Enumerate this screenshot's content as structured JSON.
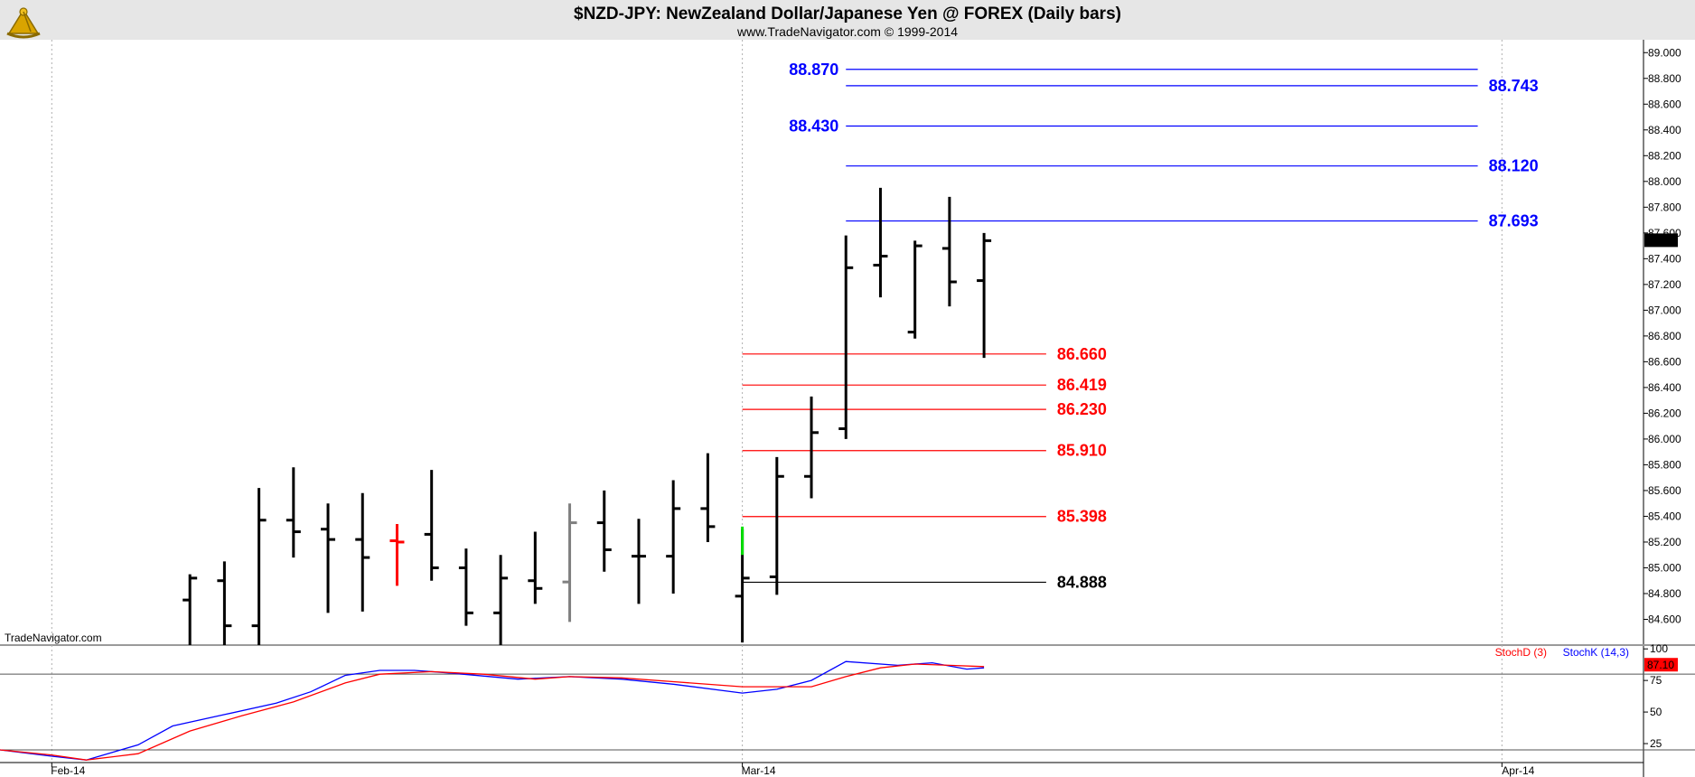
{
  "header": {
    "title": "$NZD-JPY:  NewZealand Dollar/Japanese Yen @ FOREX  (Daily bars)",
    "copyright": "www.TradeNavigator.com © 1999-2014",
    "watermark": "TradeNavigator.com",
    "logo_icon": "sextant-logo-icon"
  },
  "colors": {
    "header_bg": "#e6e6e6",
    "bar": "#000000",
    "bar_gray": "#808080",
    "bar_red": "#ff0000",
    "bar_green": "#00e000",
    "resistance": "#0000ff",
    "support": "#ff0000",
    "neutral": "#000000",
    "stoch_k": "#0000ff",
    "stoch_d": "#ff0000",
    "grid": "#b0b0b0",
    "last_price_bg": "#000000",
    "last_price_fg": "#ffffff",
    "stoch_last_bg": "#ff0000"
  },
  "chart_data": [
    {
      "type": "ohlc",
      "title": "$NZD-JPY:  NewZealand Dollar/Japanese Yen @ FOREX  (Daily bars)",
      "ylim": [
        84.4,
        89.1
      ],
      "y_ticks": [
        "84.600",
        "84.800",
        "85.000",
        "85.200",
        "85.400",
        "85.600",
        "85.800",
        "86.000",
        "86.200",
        "86.400",
        "86.600",
        "86.800",
        "87.000",
        "87.200",
        "87.400",
        "87.600",
        "87.800",
        "88.000",
        "88.200",
        "88.400",
        "88.600",
        "88.800",
        "89.000"
      ],
      "x_ticks": [
        {
          "label": "Feb-14",
          "day": 0
        },
        {
          "label": "Mar-14",
          "day": 20
        },
        {
          "label": "Apr-14",
          "day": 42
        }
      ],
      "x_range": [
        -1.5,
        46.1
      ],
      "last_price": "87.540",
      "bars": [
        {
          "day": 4,
          "open": 84.75,
          "high": 84.95,
          "low": 84.35,
          "close": 84.92,
          "color": "black"
        },
        {
          "day": 5,
          "open": 84.9,
          "high": 85.05,
          "low": 84.38,
          "close": 84.55,
          "color": "black"
        },
        {
          "day": 6,
          "open": 84.55,
          "high": 85.62,
          "low": 84.4,
          "close": 85.37,
          "color": "black"
        },
        {
          "day": 7,
          "open": 85.37,
          "high": 85.78,
          "low": 85.08,
          "close": 85.28,
          "color": "black"
        },
        {
          "day": 8,
          "open": 85.3,
          "high": 85.5,
          "low": 84.65,
          "close": 85.22,
          "color": "black"
        },
        {
          "day": 9,
          "open": 85.22,
          "high": 85.58,
          "low": 84.66,
          "close": 85.08,
          "color": "black"
        },
        {
          "day": 10,
          "open": 85.21,
          "high": 85.34,
          "low": 84.86,
          "close": 85.2,
          "color": "red"
        },
        {
          "day": 11,
          "open": 85.26,
          "high": 85.76,
          "low": 84.9,
          "close": 85.0,
          "color": "black"
        },
        {
          "day": 12,
          "open": 85.0,
          "high": 85.15,
          "low": 84.55,
          "close": 84.65,
          "color": "black"
        },
        {
          "day": 13,
          "open": 84.65,
          "high": 85.1,
          "low": 84.4,
          "close": 84.92,
          "color": "black"
        },
        {
          "day": 14,
          "open": 84.9,
          "high": 85.28,
          "low": 84.72,
          "close": 84.84,
          "color": "black"
        },
        {
          "day": 15,
          "open": 84.89,
          "high": 85.5,
          "low": 84.58,
          "close": 85.35,
          "color": "gray"
        },
        {
          "day": 16,
          "open": 85.35,
          "high": 85.6,
          "low": 84.97,
          "close": 85.14,
          "color": "black"
        },
        {
          "day": 17,
          "open": 85.09,
          "high": 85.38,
          "low": 84.72,
          "close": 85.09,
          "color": "black"
        },
        {
          "day": 18,
          "open": 85.09,
          "high": 85.68,
          "low": 84.8,
          "close": 85.46,
          "color": "black"
        },
        {
          "day": 19,
          "open": 85.46,
          "high": 85.89,
          "low": 85.2,
          "close": 85.32,
          "color": "black"
        },
        {
          "day": 20,
          "open": 84.78,
          "high": 85.3,
          "low": 84.42,
          "close": 84.92,
          "color": "black"
        },
        {
          "day": 21,
          "open": 84.93,
          "high": 85.86,
          "low": 84.79,
          "close": 85.71,
          "color": "black"
        },
        {
          "day": 22,
          "open": 85.71,
          "high": 86.33,
          "low": 85.54,
          "close": 86.05,
          "color": "black"
        },
        {
          "day": 23,
          "open": 86.08,
          "high": 87.58,
          "low": 86.0,
          "close": 87.33,
          "color": "black"
        },
        {
          "day": 24,
          "open": 87.35,
          "high": 87.95,
          "low": 87.1,
          "close": 87.42,
          "color": "black"
        },
        {
          "day": 25,
          "open": 86.83,
          "high": 87.54,
          "low": 86.78,
          "close": 87.5,
          "color": "black"
        },
        {
          "day": 26,
          "open": 87.48,
          "high": 87.88,
          "low": 87.03,
          "close": 87.22,
          "color": "black"
        },
        {
          "day": 27,
          "open": 87.23,
          "high": 87.6,
          "low": 86.63,
          "close": 87.54,
          "color": "black"
        }
      ],
      "segment_marks": [
        {
          "day": 20,
          "from": 85.1,
          "to": 85.32,
          "color": "green"
        }
      ],
      "levels": [
        {
          "value": 88.87,
          "label": "88.870",
          "color": "blue",
          "x_start": 23,
          "x_end": 41.3,
          "label_side": "left"
        },
        {
          "value": 88.743,
          "label": "88.743",
          "color": "blue",
          "x_start": 23,
          "x_end": 41.3,
          "label_side": "right"
        },
        {
          "value": 88.43,
          "label": "88.430",
          "color": "blue",
          "x_start": 23,
          "x_end": 41.3,
          "label_side": "left"
        },
        {
          "value": 88.12,
          "label": "88.120",
          "color": "blue",
          "x_start": 23,
          "x_end": 41.3,
          "label_side": "right"
        },
        {
          "value": 87.693,
          "label": "87.693",
          "color": "blue",
          "x_start": 23,
          "x_end": 41.3,
          "label_side": "right"
        },
        {
          "value": 86.66,
          "label": "86.660",
          "color": "red",
          "x_start": 20,
          "x_end": 28.8,
          "label_side": "right"
        },
        {
          "value": 86.419,
          "label": "86.419",
          "color": "red",
          "x_start": 20,
          "x_end": 28.8,
          "label_side": "right"
        },
        {
          "value": 86.23,
          "label": "86.230",
          "color": "red",
          "x_start": 20,
          "x_end": 28.8,
          "label_side": "right"
        },
        {
          "value": 85.91,
          "label": "85.910",
          "color": "red",
          "x_start": 20,
          "x_end": 28.8,
          "label_side": "right"
        },
        {
          "value": 85.398,
          "label": "85.398",
          "color": "red",
          "x_start": 20,
          "x_end": 28.8,
          "label_side": "right"
        },
        {
          "value": 84.888,
          "label": "84.888",
          "color": "black",
          "x_start": 20,
          "x_end": 28.8,
          "label_side": "right"
        }
      ]
    },
    {
      "type": "line",
      "ylim": [
        10,
        103
      ],
      "y_ticks": [
        "25",
        "50",
        "75",
        "100"
      ],
      "guide_lines": [
        80,
        20
      ],
      "last_value": "87.10",
      "legend": [
        {
          "label": "StochD (3)",
          "color": "red"
        },
        {
          "label": "StochK (14,3)",
          "color": "blue"
        }
      ],
      "series": [
        {
          "name": "StochK (14,3)",
          "color": "blue",
          "points": [
            {
              "day": -1.5,
              "value": 20
            },
            {
              "day": 0,
              "value": 15
            },
            {
              "day": 1,
              "value": 12
            },
            {
              "day": 2.5,
              "value": 24
            },
            {
              "day": 3.5,
              "value": 39
            },
            {
              "day": 5,
              "value": 48
            },
            {
              "day": 6.5,
              "value": 57
            },
            {
              "day": 7.5,
              "value": 66
            },
            {
              "day": 8.5,
              "value": 79
            },
            {
              "day": 9.5,
              "value": 83
            },
            {
              "day": 10.5,
              "value": 83
            },
            {
              "day": 11.5,
              "value": 81
            },
            {
              "day": 13.5,
              "value": 76
            },
            {
              "day": 15,
              "value": 78
            },
            {
              "day": 16.5,
              "value": 76
            },
            {
              "day": 18,
              "value": 72
            },
            {
              "day": 20,
              "value": 65
            },
            {
              "day": 21,
              "value": 68
            },
            {
              "day": 22,
              "value": 75
            },
            {
              "day": 23,
              "value": 90
            },
            {
              "day": 24.5,
              "value": 87
            },
            {
              "day": 25.5,
              "value": 89
            },
            {
              "day": 26.5,
              "value": 84
            },
            {
              "day": 27,
              "value": 85
            }
          ]
        },
        {
          "name": "StochD (3)",
          "color": "red",
          "points": [
            {
              "day": -1.5,
              "value": 20
            },
            {
              "day": 0,
              "value": 16
            },
            {
              "day": 1,
              "value": 12
            },
            {
              "day": 2.5,
              "value": 17
            },
            {
              "day": 4,
              "value": 35
            },
            {
              "day": 5.5,
              "value": 47
            },
            {
              "day": 7,
              "value": 58
            },
            {
              "day": 8.5,
              "value": 73
            },
            {
              "day": 9.5,
              "value": 80
            },
            {
              "day": 11,
              "value": 82
            },
            {
              "day": 12.5,
              "value": 80
            },
            {
              "day": 14,
              "value": 76
            },
            {
              "day": 15,
              "value": 78
            },
            {
              "day": 16.5,
              "value": 77
            },
            {
              "day": 18,
              "value": 74
            },
            {
              "day": 20,
              "value": 70
            },
            {
              "day": 22,
              "value": 70
            },
            {
              "day": 23,
              "value": 78
            },
            {
              "day": 24,
              "value": 85
            },
            {
              "day": 25,
              "value": 88
            },
            {
              "day": 26,
              "value": 87
            },
            {
              "day": 27,
              "value": 86
            }
          ]
        }
      ]
    }
  ]
}
